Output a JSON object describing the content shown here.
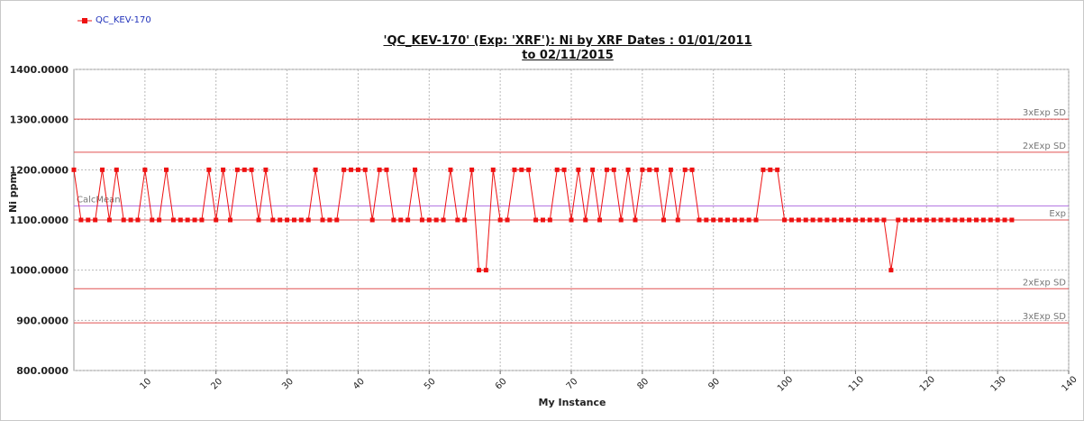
{
  "legend": {
    "series_label": "QC_KEV-170",
    "color": "#ee1111"
  },
  "chart_data": {
    "type": "line",
    "title_line1": "'QC_KEV-170' (Exp: 'XRF'): Ni by XRF Dates : 01/01/2011",
    "title_line2": "to 02/11/2015",
    "xlabel": "My Instance",
    "ylabel": "Ni ppm",
    "xlim": [
      0,
      140
    ],
    "ylim": [
      800,
      1400
    ],
    "grid": true,
    "legend_position": "top-left",
    "y_ticks": [
      "800.0000",
      "900.0000",
      "1000.0000",
      "1100.0000",
      "1200.0000",
      "1300.0000",
      "1400.0000"
    ],
    "y_tick_values": [
      800,
      900,
      1000,
      1100,
      1200,
      1300,
      1400
    ],
    "x_ticks": [
      "10",
      "20",
      "30",
      "40",
      "50",
      "60",
      "70",
      "80",
      "90",
      "100",
      "110",
      "120",
      "130",
      "140"
    ],
    "x_tick_values": [
      10,
      20,
      30,
      40,
      50,
      60,
      70,
      80,
      90,
      100,
      110,
      120,
      130,
      140
    ],
    "series": [
      {
        "name": "QC_KEV-170",
        "color": "#ee1111",
        "x": [
          1,
          2,
          3,
          4,
          5,
          6,
          7,
          8,
          9,
          10,
          11,
          12,
          13,
          14,
          15,
          16,
          17,
          18,
          19,
          20,
          21,
          22,
          23,
          24,
          25,
          26,
          27,
          28,
          29,
          30,
          31,
          32,
          33,
          34,
          35,
          36,
          37,
          38,
          39,
          40,
          41,
          42,
          43,
          44,
          45,
          46,
          47,
          48,
          49,
          50,
          51,
          52,
          53,
          54,
          55,
          56,
          57,
          58,
          59,
          60,
          61,
          62,
          63,
          64,
          65,
          66,
          67,
          68,
          69,
          70,
          71,
          72,
          73,
          74,
          75,
          76,
          77,
          78,
          79,
          80,
          81,
          82,
          83,
          84,
          85,
          86,
          87,
          88,
          89,
          90,
          91,
          92,
          93,
          94,
          95,
          96,
          97,
          98,
          99,
          100,
          101,
          102,
          103,
          104,
          105,
          106,
          107,
          108,
          109,
          110,
          111,
          112,
          113,
          114,
          115,
          116,
          117,
          118,
          119,
          120,
          121,
          122,
          123,
          124,
          125,
          126,
          127,
          128,
          129,
          130,
          131,
          132
        ],
        "values": [
          1100,
          1100,
          1100,
          1200,
          1100,
          1200,
          1100,
          1100,
          1100,
          1200,
          1100,
          1100,
          1200,
          1100,
          1100,
          1100,
          1100,
          1100,
          1200,
          1100,
          1200,
          1100,
          1200,
          1200,
          1200,
          1100,
          1200,
          1100,
          1100,
          1100,
          1100,
          1100,
          1100,
          1200,
          1100,
          1100,
          1100,
          1200,
          1200,
          1200,
          1200,
          1100,
          1200,
          1200,
          1100,
          1100,
          1100,
          1200,
          1100,
          1100,
          1100,
          1100,
          1200,
          1100,
          1100,
          1200,
          1000,
          1000,
          1200,
          1100,
          1100,
          1200,
          1200,
          1200,
          1100,
          1100,
          1100,
          1200,
          1200,
          1100,
          1200,
          1100,
          1200,
          1100,
          1200,
          1200,
          1100,
          1200,
          1100,
          1200,
          1200,
          1200,
          1100,
          1200,
          1100,
          1200,
          1200,
          1100,
          1100,
          1100,
          1100,
          1100,
          1100,
          1100,
          1100,
          1100,
          1200,
          1200,
          1200,
          1100,
          1100,
          1100,
          1100,
          1100,
          1100,
          1100,
          1100,
          1100,
          1100,
          1100,
          1100,
          1100,
          1100,
          1100,
          1000,
          1100,
          1100,
          1100,
          1100,
          1100,
          1100,
          1100,
          1100,
          1100,
          1100,
          1100,
          1100,
          1100,
          1100,
          1100,
          1100,
          1100
        ]
      }
    ],
    "first_point": {
      "x": 0,
      "value": 1200
    },
    "reference_lines": [
      {
        "label": "3xExp SD",
        "value": 1301,
        "color": "#e05050"
      },
      {
        "label": "2xExp SD",
        "value": 1235,
        "color": "#e05050"
      },
      {
        "label": "CalcMean",
        "value": 1128,
        "color": "#b070e0"
      },
      {
        "label": "Exp",
        "value": 1100,
        "color": "#e05050"
      },
      {
        "label": "2xExp SD",
        "value": 963,
        "color": "#e05050"
      },
      {
        "label": "3xExp SD",
        "value": 895,
        "color": "#e05050"
      }
    ]
  }
}
